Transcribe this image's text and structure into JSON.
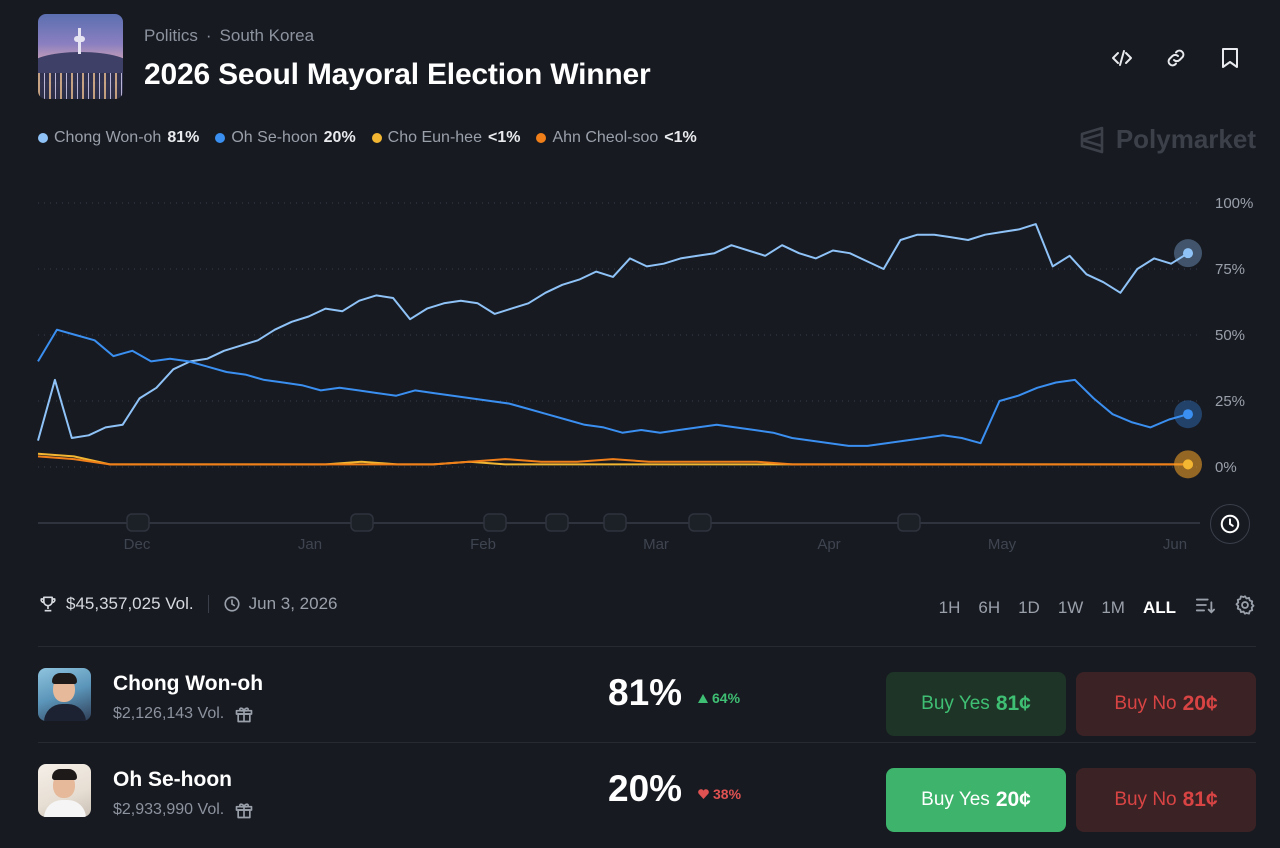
{
  "header": {
    "category": "Politics",
    "separator": "·",
    "region": "South Korea",
    "title": "2026 Seoul Mayoral Election Winner"
  },
  "toolbar_icons": [
    "embed-code-icon",
    "link-icon",
    "bookmark-icon"
  ],
  "legend": [
    {
      "name": "Chong Won-oh",
      "value": "81%",
      "color": "#8fc3f7"
    },
    {
      "name": "Oh Se-hoon",
      "value": "20%",
      "color": "#3a8ff0"
    },
    {
      "name": "Cho Eun-hee",
      "value": "<1%",
      "color": "#f2b632"
    },
    {
      "name": "Ahn Cheol-soo",
      "value": "<1%",
      "color": "#f07f1a"
    }
  ],
  "brand": "Polymarket",
  "chart_data": {
    "type": "line",
    "x_ticks": [
      "Dec",
      "Jan",
      "Feb",
      "Mar",
      "Apr",
      "May",
      "Jun"
    ],
    "y_ticks": [
      "100%",
      "75%",
      "50%",
      "25%",
      "0%"
    ],
    "ylim": [
      0,
      100
    ],
    "grid": true,
    "series": [
      {
        "name": "Chong Won-oh",
        "color": "#8fc3f7",
        "values": [
          10,
          33,
          11,
          12,
          15,
          16,
          26,
          30,
          37,
          40,
          41,
          44,
          46,
          48,
          52,
          55,
          57,
          60,
          59,
          63,
          65,
          64,
          56,
          60,
          62,
          63,
          62,
          58,
          60,
          62,
          66,
          69,
          71,
          74,
          72,
          79,
          76,
          77,
          79,
          80,
          81,
          84,
          82,
          80,
          84,
          81,
          79,
          82,
          81,
          78,
          75,
          86,
          88,
          88,
          87,
          86,
          88,
          89,
          90,
          92,
          76,
          80,
          73,
          70,
          66,
          75,
          79,
          77,
          81
        ]
      },
      {
        "name": "Oh Se-hoon",
        "color": "#3a8ff0",
        "values": [
          40,
          52,
          50,
          48,
          42,
          44,
          40,
          41,
          40,
          38,
          36,
          35,
          33,
          32,
          31,
          29,
          30,
          29,
          28,
          27,
          29,
          28,
          27,
          26,
          25,
          24,
          22,
          20,
          18,
          16,
          15,
          13,
          14,
          13,
          14,
          15,
          16,
          15,
          14,
          13,
          11,
          10,
          9,
          8,
          8,
          9,
          10,
          11,
          12,
          11,
          9,
          25,
          27,
          30,
          32,
          33,
          26,
          20,
          17,
          15,
          18,
          20
        ]
      },
      {
        "name": "Cho Eun-hee",
        "color": "#f2b632",
        "values": [
          5,
          4,
          1,
          1,
          1,
          1,
          1,
          1,
          1,
          2,
          1,
          1,
          2,
          1,
          1,
          1,
          1,
          1,
          1,
          1,
          1,
          1,
          1,
          1,
          1,
          1,
          1,
          1,
          1,
          1,
          1,
          1,
          1
        ]
      },
      {
        "name": "Ahn Cheol-soo",
        "color": "#f07f1a",
        "values": [
          4,
          3,
          1,
          1,
          1,
          1,
          1,
          1,
          1,
          1,
          1,
          1,
          2,
          3,
          2,
          2,
          3,
          2,
          2,
          2,
          2,
          1,
          1,
          1,
          1,
          1,
          1,
          1,
          1,
          1,
          1,
          1,
          1
        ]
      }
    ]
  },
  "stats": {
    "volume": "$45,357,025 Vol.",
    "end_date": "Jun 3, 2026"
  },
  "ranges": [
    {
      "label": "1H",
      "active": false
    },
    {
      "label": "6H",
      "active": false
    },
    {
      "label": "1D",
      "active": false
    },
    {
      "label": "1W",
      "active": false
    },
    {
      "label": "1M",
      "active": false
    },
    {
      "label": "ALL",
      "active": true
    }
  ],
  "candidates": [
    {
      "name": "Chong Won-oh",
      "volume": "$2,126,143 Vol.",
      "percent": "81%",
      "change": "64%",
      "direction": "up",
      "buy_yes_label": "Buy Yes",
      "buy_yes_price": "81¢",
      "buy_no_label": "Buy No",
      "buy_no_price": "20¢"
    },
    {
      "name": "Oh Se-hoon",
      "volume": "$2,933,990 Vol.",
      "percent": "20%",
      "change": "38%",
      "direction": "down",
      "buy_yes_label": "Buy Yes",
      "buy_yes_price": "20¢",
      "buy_no_label": "Buy No",
      "buy_no_price": "81¢"
    }
  ]
}
